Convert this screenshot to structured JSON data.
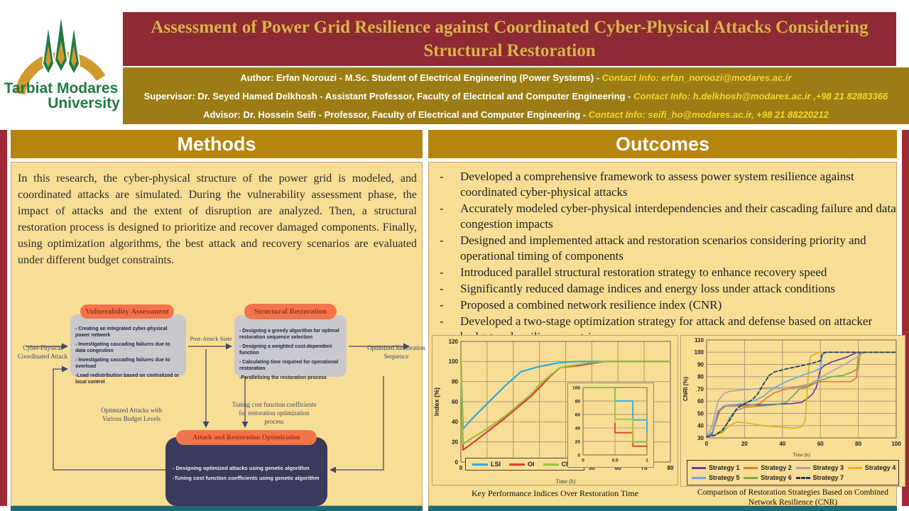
{
  "university": {
    "name_line1": "Tarbiat Modares",
    "name_line2": "University"
  },
  "header": {
    "title_line1": "Assessment of Power Grid Resilience against Coordinated Cyber-Physical Attacks Considering",
    "title_line2": "Structural Restoration",
    "people": [
      {
        "main": "Author: Erfan Norouzi - M.Sc. Student of Electrical Engineering (Power Systems) - ",
        "contact": "Contact Info: erfan_noroozi@modares.ac.ir"
      },
      {
        "main": "Supervisor: Dr. Seyed Hamed Delkhosh - Assistant Professor, Faculty of Electrical and Computer Engineering - ",
        "contact": "Contact Info: h.delkhosh@modares.ac.ir ,+98 21 82883366"
      },
      {
        "main": "Advisor: Dr. Hossein Seifi - Professor, Faculty of Electrical and Computer Engineering - ",
        "contact": "Contact Info: seifi_ho@modares.ac.ir, +98 21 88220212"
      }
    ]
  },
  "colors": {
    "title_bar_bg": "#8e2a33",
    "title_text": "#d8b44a",
    "band_bg": "#9c7d15",
    "contact_text": "#f6d42a",
    "section_header_bg": "#b5850e",
    "panel_bg": "#f8dd94",
    "red_bar": "#9e2b35",
    "teal_bar": "#1d6b77",
    "flow_box_bg": "#c9c9cd",
    "flow_pill_bg": "#f3744b",
    "opt_box_bg": "#3a3a5c"
  },
  "methods": {
    "heading": "Methods",
    "paragraph": "In this research, the cyber-physical structure of the power grid is modeled, and coordinated attacks are simulated. During the vulnerability assessment phase, the impact of attacks and the extent of disruption are analyzed. Then, a structural restoration process is designed to prioritize and recover damaged components. Finally, using optimization algorithms, the best attack and recovery scenarios are evaluated under different budget constraints."
  },
  "flowchart": {
    "input_label": "Cyber-Physical Coordinated Attack",
    "arrow_label": "Post-Attack State",
    "output_label": "Optimized Restoration Sequence",
    "feedback_left_label": "Optimized Attacks with Various Budget Levels",
    "feedback_right_label": "Tuning cost function coefficients for restoration optimization process",
    "va": {
      "title": "Vulnerability Assessment",
      "items": [
        "- Creating an integrated cyber-physical power network",
        "- Investigating cascading failures due to data congestion",
        "- Investigating cascading failures due to overload",
        "-Load redistribution based on centralized or local control"
      ]
    },
    "sr": {
      "title": "Structural Restoration",
      "items": [
        "- Designing a greedy algorithm for optimal restoration sequence selection",
        "- Designing a weighted cost-dependent function",
        "- Calculating time required for operational restoration",
        "-Parallelizing the restoration process"
      ]
    },
    "opt": {
      "title": "Attack and Restoration Optimization",
      "items": [
        "- Designing optimized attacks using genetic algorithm",
        "-Tuning cost function coefficients using genetic algorithm"
      ]
    }
  },
  "outcomes": {
    "heading": "Outcomes",
    "bullets": [
      "Developed a comprehensive framework to assess power system resilience against coordinated cyber-physical attacks",
      "Accurately modeled cyber-physical interdependencies and their cascading failure and data congestion impacts",
      "Designed and implemented attack and restoration scenarios considering priority and operational timing of components",
      "Introduced parallel structural restoration strategy to enhance recovery speed",
      "Significantly reduced damage indices and energy loss under attack conditions",
      "Proposed a combined network resilience index (CNR)",
      "Developed a two-stage optimization strategy for attack and defense based on attacker budget and resilience metrics"
    ]
  },
  "chart_data": [
    {
      "type": "line",
      "title": "Key Performance Indices Over Restoration Time",
      "xlabel": "Time (h)",
      "ylabel": "Index (%)",
      "xlim": [
        0,
        80
      ],
      "ylim": [
        0,
        120
      ],
      "xticks": [
        0,
        10,
        20,
        30,
        40,
        50,
        60,
        70,
        80
      ],
      "yticks": [
        0,
        20,
        40,
        60,
        80,
        100,
        120
      ],
      "grid": true,
      "legend_position": "inside-bottom-left",
      "series": [
        {
          "name": "LSI",
          "color": "#2fa8e0",
          "points": [
            [
              0,
              100
            ],
            [
              0.8,
              33
            ],
            [
              5,
              45
            ],
            [
              10,
              58
            ],
            [
              17,
              76
            ],
            [
              23,
              90
            ],
            [
              30,
              95
            ],
            [
              38,
              99
            ],
            [
              45,
              100
            ],
            [
              80,
              100
            ]
          ]
        },
        {
          "name": "OI",
          "color": "#e03c31",
          "points": [
            [
              0,
              100
            ],
            [
              0.8,
              12
            ],
            [
              5,
              20
            ],
            [
              10,
              30
            ],
            [
              16,
              42
            ],
            [
              22,
              55
            ],
            [
              27,
              66
            ],
            [
              30,
              74
            ],
            [
              34,
              85
            ],
            [
              38,
              94
            ],
            [
              45,
              96
            ],
            [
              50,
              98
            ],
            [
              55,
              100
            ],
            [
              80,
              100
            ]
          ]
        },
        {
          "name": "CNRI",
          "color": "#97c23c",
          "points": [
            [
              0,
              100
            ],
            [
              0.8,
              18
            ],
            [
              5,
              25
            ],
            [
              10,
              33
            ],
            [
              16,
              44
            ],
            [
              22,
              57
            ],
            [
              27,
              68
            ],
            [
              30,
              77
            ],
            [
              34,
              86
            ],
            [
              38,
              94
            ],
            [
              45,
              97
            ],
            [
              50,
              99
            ],
            [
              55,
              100
            ],
            [
              80,
              100
            ]
          ]
        }
      ],
      "inset": {
        "xlim": [
          0,
          1
        ],
        "ylim": [
          0,
          100
        ],
        "xticks": [
          0,
          0.5,
          1
        ],
        "yticks": [
          0,
          20,
          40,
          60,
          80,
          100
        ],
        "series": [
          {
            "name": "LSI",
            "color": "#2fa8e0",
            "points": [
              [
                0,
                100
              ],
              [
                0.5,
                100
              ],
              [
                0.5,
                80
              ],
              [
                0.78,
                80
              ],
              [
                0.78,
                52
              ],
              [
                1,
                52
              ],
              [
                1,
                33
              ]
            ]
          },
          {
            "name": "OI",
            "color": "#e03c31",
            "points": [
              [
                0.5,
                47
              ],
              [
                0.5,
                33
              ],
              [
                0.78,
                33
              ],
              [
                0.78,
                13
              ],
              [
                1,
                13
              ]
            ]
          },
          {
            "name": "CNRI",
            "color": "#97c23c",
            "points": [
              [
                0,
                100
              ],
              [
                0.5,
                100
              ],
              [
                0.5,
                53
              ],
              [
                0.78,
                53
              ],
              [
                0.78,
                19
              ],
              [
                1,
                19
              ]
            ]
          }
        ]
      }
    },
    {
      "type": "line",
      "title": "Comparison of Restoration Strategies Based on Combined Network Resilience (CNR)",
      "xlabel": "Time (h)",
      "ylabel": "CNRI (%)",
      "xlim": [
        0,
        100
      ],
      "ylim": [
        30,
        110
      ],
      "xticks": [
        0,
        20,
        40,
        60,
        80,
        100
      ],
      "yticks": [
        30,
        40,
        50,
        60,
        70,
        80,
        90,
        100,
        110
      ],
      "grid": true,
      "legend_position": "below",
      "series": [
        {
          "name": "Strategy 1",
          "color": "#6a3d9a",
          "points": [
            [
              0,
              31
            ],
            [
              3,
              33
            ],
            [
              6,
              50
            ],
            [
              9,
              56
            ],
            [
              13,
              57
            ],
            [
              30,
              57
            ],
            [
              45,
              58
            ],
            [
              50,
              59
            ],
            [
              53,
              62
            ],
            [
              56,
              66
            ],
            [
              58,
              72
            ],
            [
              60,
              86
            ],
            [
              62,
              89
            ],
            [
              66,
              92
            ],
            [
              70,
              94
            ],
            [
              74,
              96
            ],
            [
              78,
              99
            ],
            [
              80,
              100
            ],
            [
              100,
              100
            ]
          ]
        },
        {
          "name": "Strategy 2",
          "color": "#e07b39",
          "points": [
            [
              0,
              31
            ],
            [
              3,
              34
            ],
            [
              7,
              52
            ],
            [
              10,
              56
            ],
            [
              20,
              56
            ],
            [
              28,
              58
            ],
            [
              32,
              63
            ],
            [
              36,
              67
            ],
            [
              40,
              69
            ],
            [
              46,
              71
            ],
            [
              52,
              72
            ],
            [
              57,
              75
            ],
            [
              62,
              76
            ],
            [
              70,
              76
            ],
            [
              76,
              76
            ],
            [
              79,
              79
            ],
            [
              80,
              99
            ],
            [
              82,
              100
            ],
            [
              100,
              100
            ]
          ]
        },
        {
          "name": "Strategy 3",
          "color": "#a8a8a8",
          "points": [
            [
              0,
              31
            ],
            [
              3,
              40
            ],
            [
              6,
              60
            ],
            [
              9,
              66
            ],
            [
              12,
              68
            ],
            [
              18,
              69
            ],
            [
              25,
              70
            ],
            [
              32,
              71
            ],
            [
              40,
              71
            ],
            [
              48,
              72
            ],
            [
              54,
              74
            ],
            [
              58,
              77
            ],
            [
              62,
              81
            ],
            [
              68,
              86
            ],
            [
              74,
              91
            ],
            [
              78,
              95
            ],
            [
              82,
              99
            ],
            [
              85,
              100
            ],
            [
              100,
              100
            ]
          ]
        },
        {
          "name": "Strategy 4",
          "color": "#e0b320",
          "points": [
            [
              0,
              31
            ],
            [
              4,
              32
            ],
            [
              8,
              34
            ],
            [
              12,
              40
            ],
            [
              16,
              43
            ],
            [
              22,
              42
            ],
            [
              30,
              40
            ],
            [
              38,
              39
            ],
            [
              46,
              38
            ],
            [
              50,
              39
            ],
            [
              52,
              44
            ],
            [
              54,
              90
            ],
            [
              55,
              97
            ],
            [
              58,
              99
            ],
            [
              60,
              100
            ],
            [
              100,
              100
            ]
          ]
        },
        {
          "name": "Strategy 5",
          "color": "#6fa8dc",
          "points": [
            [
              0,
              31
            ],
            [
              3,
              35
            ],
            [
              6,
              52
            ],
            [
              9,
              56
            ],
            [
              14,
              57
            ],
            [
              20,
              58
            ],
            [
              26,
              61
            ],
            [
              30,
              64
            ],
            [
              33,
              68
            ],
            [
              37,
              72
            ],
            [
              42,
              76
            ],
            [
              47,
              79
            ],
            [
              52,
              82
            ],
            [
              56,
              84
            ],
            [
              59,
              86
            ],
            [
              60,
              87
            ],
            [
              61,
              98
            ],
            [
              63,
              100
            ],
            [
              100,
              100
            ]
          ]
        },
        {
          "name": "Strategy 6",
          "color": "#7aa855",
          "points": [
            [
              0,
              31
            ],
            [
              4,
              32
            ],
            [
              9,
              36
            ],
            [
              12,
              46
            ],
            [
              15,
              52
            ],
            [
              20,
              55
            ],
            [
              28,
              56
            ],
            [
              36,
              57
            ],
            [
              42,
              59
            ],
            [
              46,
              65
            ],
            [
              49,
              70
            ],
            [
              54,
              72
            ],
            [
              60,
              77
            ],
            [
              66,
              80
            ],
            [
              72,
              81
            ],
            [
              77,
              84
            ],
            [
              80,
              87
            ],
            [
              81,
              99
            ],
            [
              83,
              100
            ],
            [
              100,
              100
            ]
          ]
        },
        {
          "name": "Strategy 7",
          "color": "#1f3864",
          "dash": "5 3",
          "points": [
            [
              0,
              31
            ],
            [
              4,
              32
            ],
            [
              8,
              36
            ],
            [
              12,
              44
            ],
            [
              16,
              54
            ],
            [
              20,
              58
            ],
            [
              24,
              61
            ],
            [
              27,
              66
            ],
            [
              30,
              74
            ],
            [
              33,
              81
            ],
            [
              36,
              84
            ],
            [
              41,
              86
            ],
            [
              47,
              88
            ],
            [
              53,
              90
            ],
            [
              58,
              92
            ],
            [
              60,
              93
            ],
            [
              61,
              99
            ],
            [
              63,
              100
            ],
            [
              100,
              100
            ]
          ]
        }
      ]
    }
  ]
}
